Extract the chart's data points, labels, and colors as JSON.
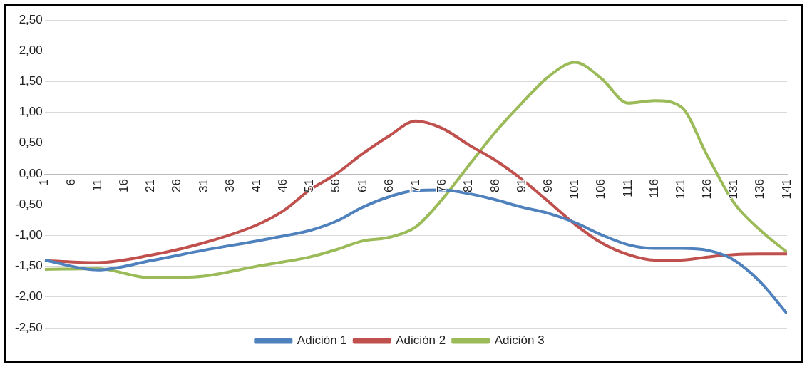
{
  "chart_data": {
    "type": "line",
    "x": [
      1,
      11,
      21,
      31,
      41,
      46,
      51,
      56,
      61,
      66,
      71,
      76,
      81,
      86,
      91,
      96,
      101,
      106,
      111,
      116,
      121,
      126,
      131,
      136,
      141
    ],
    "series": [
      {
        "name": "Adición 1",
        "color": "#4f81bd",
        "values": [
          -1.4,
          -1.56,
          -1.41,
          -1.24,
          -1.09,
          -1.01,
          -0.92,
          -0.77,
          -0.54,
          -0.37,
          -0.27,
          -0.26,
          -0.32,
          -0.42,
          -0.54,
          -0.64,
          -0.79,
          -0.99,
          -1.15,
          -1.21,
          -1.21,
          -1.24,
          -1.4,
          -1.76,
          -2.27
        ]
      },
      {
        "name": "Adición 2",
        "color": "#c0504d",
        "values": [
          -1.41,
          -1.44,
          -1.32,
          -1.12,
          -0.83,
          -0.6,
          -0.26,
          0.0,
          0.33,
          0.62,
          0.86,
          0.74,
          0.47,
          0.22,
          -0.09,
          -0.45,
          -0.82,
          -1.12,
          -1.31,
          -1.4,
          -1.4,
          -1.35,
          -1.31,
          -1.3,
          -1.3
        ]
      },
      {
        "name": "Adición 3",
        "color": "#9bbb59",
        "values": [
          -1.55,
          -1.54,
          -1.69,
          -1.66,
          -1.5,
          -1.43,
          -1.35,
          -1.23,
          -1.09,
          -1.03,
          -0.86,
          -0.41,
          0.14,
          0.68,
          1.15,
          1.58,
          1.81,
          1.55,
          1.15,
          1.19,
          1.09,
          0.29,
          -0.47,
          -0.92,
          -1.27
        ]
      }
    ],
    "xlim": [
      1,
      141
    ],
    "xticks": [
      1,
      6,
      11,
      16,
      21,
      26,
      31,
      36,
      41,
      46,
      51,
      56,
      61,
      66,
      71,
      76,
      81,
      86,
      91,
      96,
      101,
      106,
      111,
      116,
      121,
      126,
      131,
      136,
      141
    ],
    "ylim": [
      -2.5,
      2.5
    ],
    "yticks": [
      {
        "value": -2.5,
        "label": "-2,50"
      },
      {
        "value": -2,
        "label": "-2,00"
      },
      {
        "value": -1.5,
        "label": "-1,50"
      },
      {
        "value": -1,
        "label": "-1,00"
      },
      {
        "value": -0.5,
        "label": "-0,50"
      },
      {
        "value": 0,
        "label": "0,00"
      },
      {
        "value": 0.5,
        "label": "0,50"
      },
      {
        "value": 1,
        "label": "1,00"
      },
      {
        "value": 1.5,
        "label": "1,50"
      },
      {
        "value": 2,
        "label": "2,00"
      },
      {
        "value": 2.5,
        "label": "2,50"
      }
    ],
    "grid": "y",
    "legend": "bottom",
    "marker": "none",
    "line_style": "solid"
  }
}
